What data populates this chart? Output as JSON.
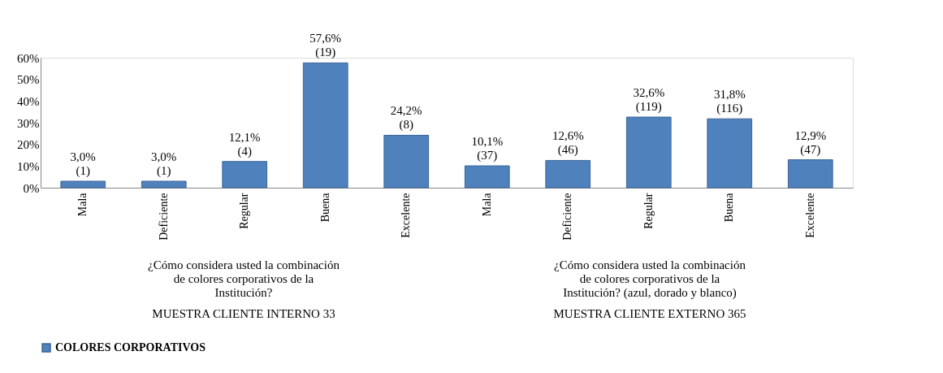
{
  "chart_data": {
    "type": "bar",
    "categories": [
      "Mala",
      "Deficiente",
      "Regular",
      "Buena",
      "Excelente",
      "Mala",
      "Deficiente",
      "Regular",
      "Buena",
      "Excelente"
    ],
    "series": [
      {
        "name": "COLORES CORPORATIVOS",
        "color": "#4f81bd",
        "values": [
          3.0,
          3.0,
          12.1,
          57.6,
          24.2,
          10.1,
          12.6,
          32.6,
          31.8,
          12.9
        ],
        "value_labels": [
          "3,0%\n(1)",
          "3,0%\n(1)",
          "12,1%\n(4)",
          "57,6%\n(19)",
          "24,2%\n(8)",
          "10,1%\n(37)",
          "12,6%\n(46)",
          "32,6%\n(119)",
          "31,8%\n(116)",
          "12,9%\n(47)"
        ]
      }
    ],
    "ylim": [
      0,
      60
    ],
    "yticks": [
      {
        "value": 0,
        "label": "0%"
      },
      {
        "value": 10,
        "label": "10%"
      },
      {
        "value": 20,
        "label": "20%"
      },
      {
        "value": 30,
        "label": "30%"
      },
      {
        "value": 40,
        "label": "40%"
      },
      {
        "value": 50,
        "label": "50%"
      },
      {
        "value": 60,
        "label": "60%"
      }
    ],
    "annotations": [
      "¿Cómo considera usted la combinación de colores corporativos de la Institución?",
      "¿Cómo considera usted la combinación de colores corporativos de la Institución? (azul, dorado y blanco)",
      "MUESTRA CLIENTE INTERNO 33",
      "MUESTRA CLIENTE EXTERNO 365"
    ],
    "grid": false,
    "legend": "bottom"
  }
}
